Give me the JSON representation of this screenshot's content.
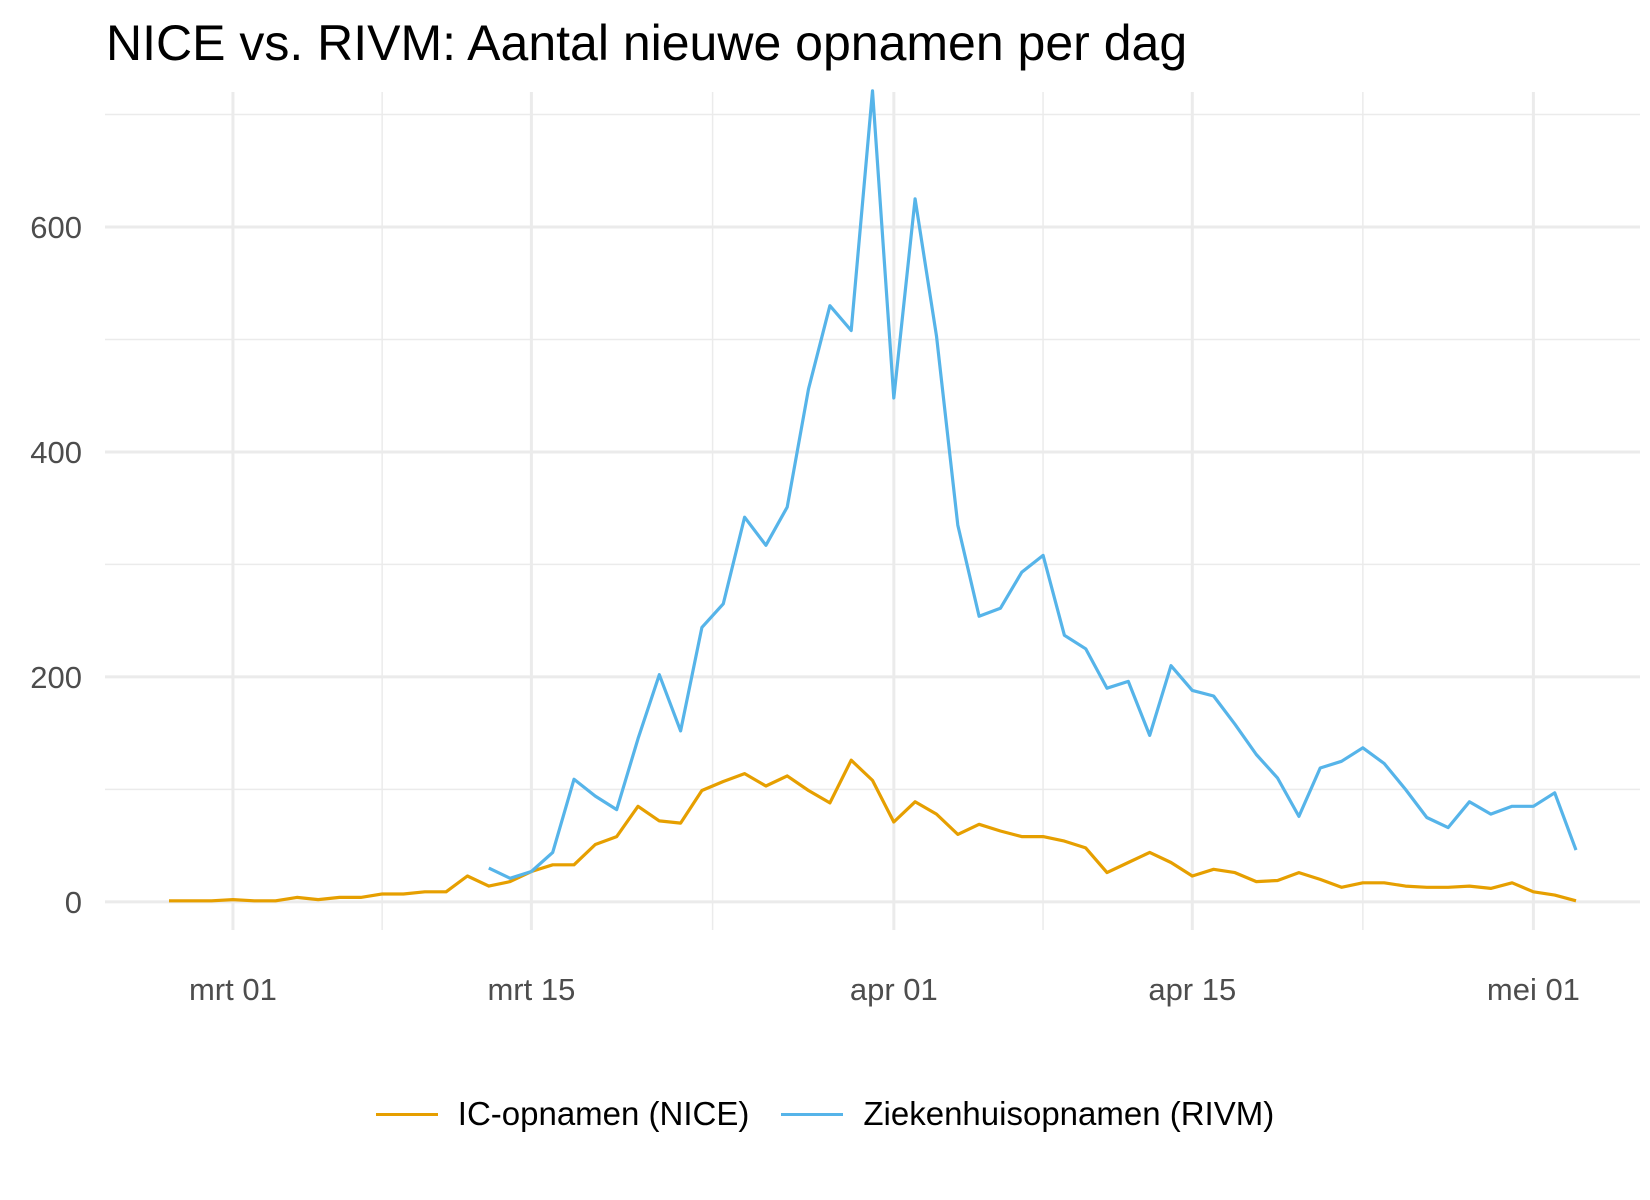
{
  "chart_data": {
    "type": "line",
    "title": "NICE vs. RIVM: Aantal nieuwe opnamen per dag",
    "xlabel": "",
    "ylabel": "",
    "x_axis": {
      "type": "date",
      "range": [
        "2020-02-24",
        "2020-05-06"
      ],
      "ticks": [
        {
          "date": "2020-03-01",
          "label": "mrt 01"
        },
        {
          "date": "2020-03-15",
          "label": "mrt 15"
        },
        {
          "date": "2020-04-01",
          "label": "apr 01"
        },
        {
          "date": "2020-04-15",
          "label": "apr 15"
        },
        {
          "date": "2020-05-01",
          "label": "mei 01"
        }
      ]
    },
    "y_axis": {
      "range": [
        -25,
        720
      ],
      "ticks": [
        0,
        200,
        400,
        600
      ]
    },
    "grid": true,
    "legend_position": "bottom",
    "series": [
      {
        "name": "IC-opnamen (NICE)",
        "color": "#E69F00",
        "points": [
          [
            "2020-02-27",
            1
          ],
          [
            "2020-02-28",
            1
          ],
          [
            "2020-02-29",
            1
          ],
          [
            "2020-03-01",
            2
          ],
          [
            "2020-03-02",
            1
          ],
          [
            "2020-03-03",
            1
          ],
          [
            "2020-03-04",
            4
          ],
          [
            "2020-03-05",
            2
          ],
          [
            "2020-03-06",
            4
          ],
          [
            "2020-03-07",
            4
          ],
          [
            "2020-03-08",
            7
          ],
          [
            "2020-03-09",
            7
          ],
          [
            "2020-03-10",
            9
          ],
          [
            "2020-03-11",
            9
          ],
          [
            "2020-03-12",
            23
          ],
          [
            "2020-03-13",
            14
          ],
          [
            "2020-03-14",
            18
          ],
          [
            "2020-03-15",
            27
          ],
          [
            "2020-03-16",
            33
          ],
          [
            "2020-03-17",
            33
          ],
          [
            "2020-03-18",
            51
          ],
          [
            "2020-03-19",
            58
          ],
          [
            "2020-03-20",
            85
          ],
          [
            "2020-03-21",
            72
          ],
          [
            "2020-03-22",
            70
          ],
          [
            "2020-03-23",
            99
          ],
          [
            "2020-03-24",
            107
          ],
          [
            "2020-03-25",
            114
          ],
          [
            "2020-03-26",
            103
          ],
          [
            "2020-03-27",
            112
          ],
          [
            "2020-03-28",
            99
          ],
          [
            "2020-03-29",
            88
          ],
          [
            "2020-03-30",
            126
          ],
          [
            "2020-03-31",
            108
          ],
          [
            "2020-04-01",
            71
          ],
          [
            "2020-04-02",
            89
          ],
          [
            "2020-04-03",
            78
          ],
          [
            "2020-04-04",
            60
          ],
          [
            "2020-04-05",
            69
          ],
          [
            "2020-04-06",
            63
          ],
          [
            "2020-04-07",
            58
          ],
          [
            "2020-04-08",
            58
          ],
          [
            "2020-04-09",
            54
          ],
          [
            "2020-04-10",
            48
          ],
          [
            "2020-04-11",
            26
          ],
          [
            "2020-04-12",
            35
          ],
          [
            "2020-04-13",
            44
          ],
          [
            "2020-04-14",
            35
          ],
          [
            "2020-04-15",
            23
          ],
          [
            "2020-04-16",
            29
          ],
          [
            "2020-04-17",
            26
          ],
          [
            "2020-04-18",
            18
          ],
          [
            "2020-04-19",
            19
          ],
          [
            "2020-04-20",
            26
          ],
          [
            "2020-04-21",
            20
          ],
          [
            "2020-04-22",
            13
          ],
          [
            "2020-04-23",
            17
          ],
          [
            "2020-04-24",
            17
          ],
          [
            "2020-04-25",
            14
          ],
          [
            "2020-04-26",
            13
          ],
          [
            "2020-04-27",
            13
          ],
          [
            "2020-04-28",
            14
          ],
          [
            "2020-04-29",
            12
          ],
          [
            "2020-04-30",
            17
          ],
          [
            "2020-05-01",
            9
          ],
          [
            "2020-05-02",
            6
          ],
          [
            "2020-05-03",
            1
          ]
        ]
      },
      {
        "name": "Ziekenhuisopnamen (RIVM)",
        "color": "#56B4E9",
        "points": [
          [
            "2020-03-13",
            30
          ],
          [
            "2020-03-14",
            21
          ],
          [
            "2020-03-15",
            27
          ],
          [
            "2020-03-16",
            44
          ],
          [
            "2020-03-17",
            109
          ],
          [
            "2020-03-18",
            94
          ],
          [
            "2020-03-19",
            82
          ],
          [
            "2020-03-20",
            145
          ],
          [
            "2020-03-21",
            202
          ],
          [
            "2020-03-22",
            152
          ],
          [
            "2020-03-23",
            244
          ],
          [
            "2020-03-24",
            265
          ],
          [
            "2020-03-25",
            342
          ],
          [
            "2020-03-26",
            317
          ],
          [
            "2020-03-27",
            351
          ],
          [
            "2020-03-28",
            456
          ],
          [
            "2020-03-29",
            530
          ],
          [
            "2020-03-30",
            508
          ],
          [
            "2020-03-31",
            721
          ],
          [
            "2020-04-01",
            448
          ],
          [
            "2020-04-02",
            625
          ],
          [
            "2020-04-03",
            503
          ],
          [
            "2020-04-04",
            335
          ],
          [
            "2020-04-05",
            254
          ],
          [
            "2020-04-06",
            261
          ],
          [
            "2020-04-07",
            293
          ],
          [
            "2020-04-08",
            308
          ],
          [
            "2020-04-09",
            237
          ],
          [
            "2020-04-10",
            225
          ],
          [
            "2020-04-11",
            190
          ],
          [
            "2020-04-12",
            196
          ],
          [
            "2020-04-13",
            148
          ],
          [
            "2020-04-14",
            210
          ],
          [
            "2020-04-15",
            188
          ],
          [
            "2020-04-16",
            183
          ],
          [
            "2020-04-17",
            158
          ],
          [
            "2020-04-18",
            131
          ],
          [
            "2020-04-19",
            110
          ],
          [
            "2020-04-20",
            76
          ],
          [
            "2020-04-21",
            119
          ],
          [
            "2020-04-22",
            125
          ],
          [
            "2020-04-23",
            137
          ],
          [
            "2020-04-24",
            123
          ],
          [
            "2020-04-25",
            100
          ],
          [
            "2020-04-26",
            75
          ],
          [
            "2020-04-27",
            66
          ],
          [
            "2020-04-28",
            89
          ],
          [
            "2020-04-29",
            78
          ],
          [
            "2020-04-30",
            85
          ],
          [
            "2020-05-01",
            85
          ],
          [
            "2020-05-02",
            97
          ],
          [
            "2020-05-03",
            46
          ]
        ]
      }
    ]
  }
}
